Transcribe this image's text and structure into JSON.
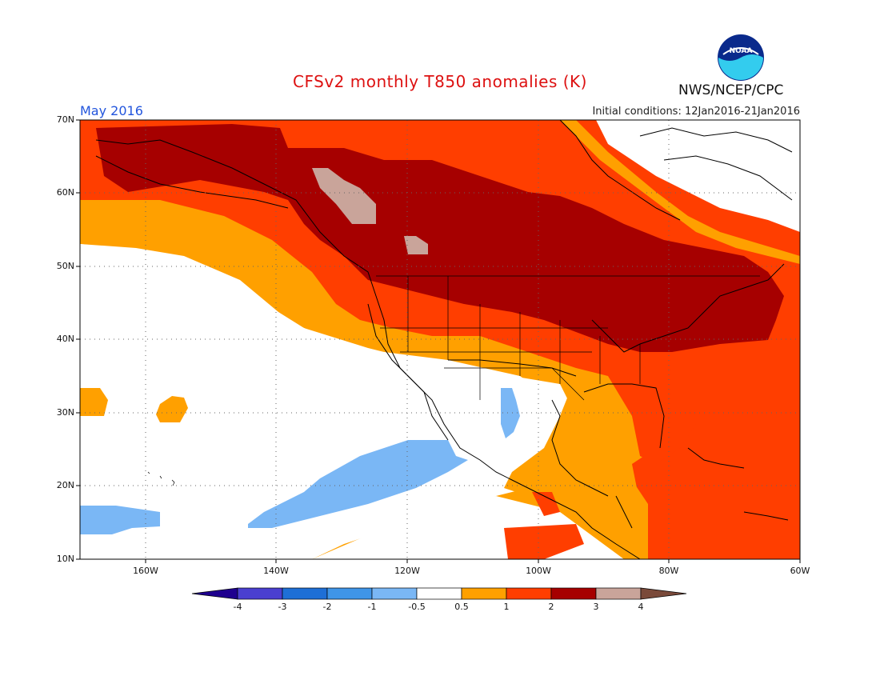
{
  "header": {
    "title": "CFSv2 monthly T850 anomalies (K)",
    "month": "May 2016",
    "initial_conditions": "Initial conditions: 12Jan2016-21Jan2016",
    "agency": "NWS/NCEP/CPC",
    "logo_text": "NOAA"
  },
  "map": {
    "lat_labels": [
      "70N",
      "60N",
      "50N",
      "40N",
      "30N",
      "20N",
      "10N"
    ],
    "lon_labels": [
      "160W",
      "140W",
      "120W",
      "100W",
      "80W",
      "60W"
    ]
  },
  "colorbar": {
    "labels": [
      "-4",
      "-3",
      "-2",
      "-1",
      "-0.5",
      "0.5",
      "1",
      "2",
      "3",
      "4"
    ],
    "colors": [
      "#1f008f",
      "#4a3fd0",
      "#1e6fd6",
      "#3f95e8",
      "#7ab7f5",
      "#ffffff",
      "#ffa000",
      "#ff3e00",
      "#a60000",
      "#c9a49a",
      "#7a4a3a"
    ]
  }
}
